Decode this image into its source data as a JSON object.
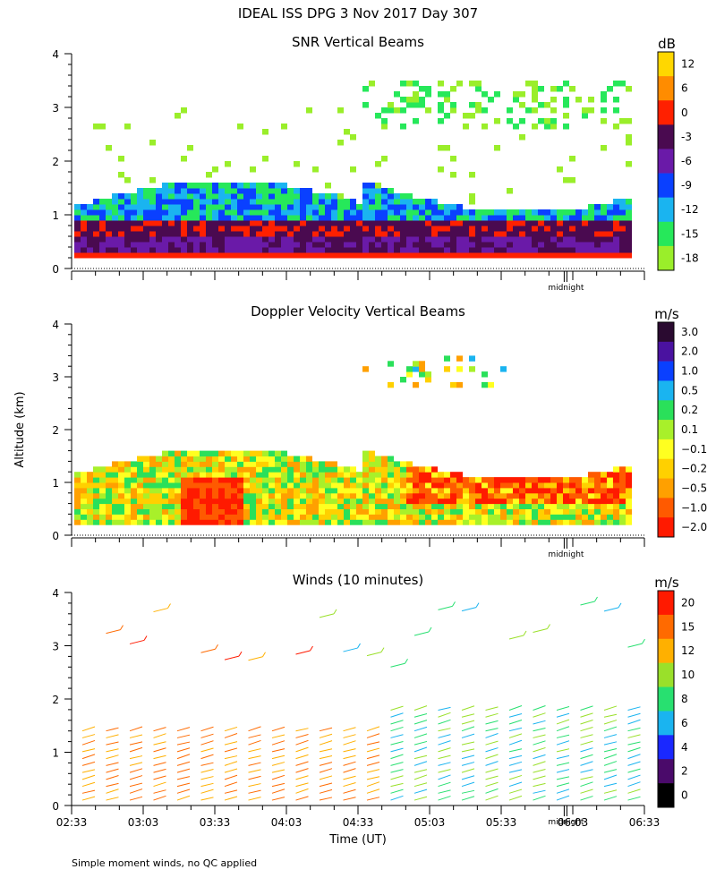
{
  "chart_data": {
    "suptitle": "IDEAL ISS DPG    3 Nov 2017 Day 307",
    "ylabel": "Altitude (km)",
    "xlabel": "Time (UT)",
    "xticks": [
      "02:33",
      "03:03",
      "03:33",
      "04:03",
      "04:33",
      "05:03",
      "05:33",
      "06:03",
      "06:33"
    ],
    "yticks": [
      "0",
      "1",
      "2",
      "3",
      "4"
    ],
    "ylim": [
      0,
      4
    ],
    "midnight_label": "midnight",
    "panels": [
      {
        "type": "heatmap",
        "title": "SNR Vertical Beams",
        "units": "dB",
        "colorbar": {
          "labels": [
            "12",
            "6",
            "0",
            "-3",
            "-6",
            "-9",
            "-12",
            "-15",
            "-18"
          ],
          "colors": [
            "#ffd700",
            "#ff8c00",
            "#ff2000",
            "#4a0a50",
            "#6a1aa8",
            "#0a40ff",
            "#1ab4f0",
            "#26e85a",
            "#9aee2a"
          ]
        }
      },
      {
        "type": "heatmap",
        "title": "Doppler Velocity Vertical Beams",
        "units": "m/s",
        "colorbar": {
          "labels": [
            "3.0",
            "2.0",
            "1.0",
            "0.5",
            "0.2",
            "0.1",
            "−0.1",
            "−0.2",
            "−0.5",
            "−1.0",
            "−2.0"
          ],
          "colors": [
            "#2a0a30",
            "#4a12a0",
            "#0a40ff",
            "#1ab4f0",
            "#2ae05a",
            "#a8f02a",
            "#ffff20",
            "#ffd000",
            "#ffa000",
            "#ff5a00",
            "#ff1a00"
          ]
        }
      },
      {
        "type": "wind_barbs",
        "title": "Winds (10 minutes)",
        "units": "m/s",
        "colorbar": {
          "labels": [
            "20",
            "15",
            "12",
            "10",
            "8",
            "6",
            "4",
            "2",
            "0"
          ],
          "colors": [
            "#ff1a00",
            "#ff6a00",
            "#ffb000",
            "#9ae02a",
            "#28e070",
            "#1ab4f0",
            "#1a28ff",
            "#4a0a6a",
            "#000000"
          ]
        }
      }
    ]
  },
  "footnote": "Simple moment winds, no QC applied"
}
